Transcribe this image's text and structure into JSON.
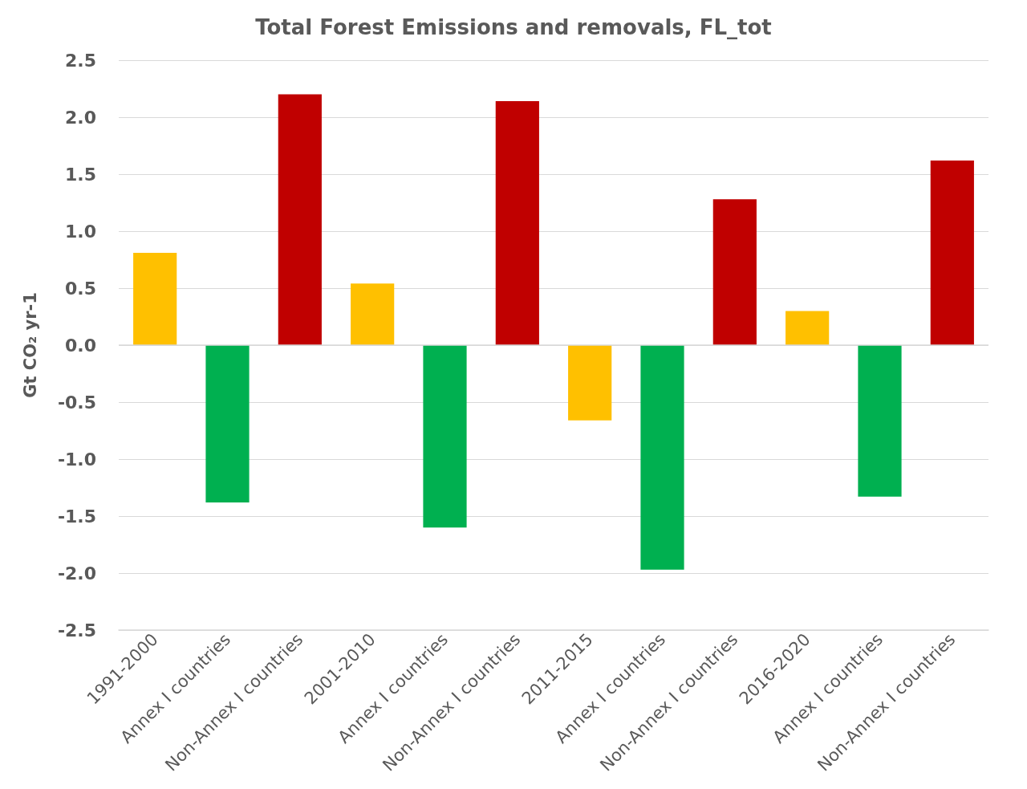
{
  "chart_data": {
    "type": "bar",
    "title": "Total Forest Emissions and removals, FL_tot",
    "ylabel": "Gt CO₂ yr-1",
    "categories": [
      "1991-2000",
      "Annex I countries",
      "Non-Annex I countries",
      "2001-2010",
      "Annex I countries",
      "Non-Annex I countries",
      "2011-2015",
      "Annex I countries",
      "Non-Annex I countries",
      "2016-2020",
      "Annex I countries",
      "Non-Annex I countries"
    ],
    "values": [
      0.81,
      -1.38,
      2.2,
      0.54,
      -1.6,
      2.14,
      -0.66,
      -1.97,
      1.28,
      0.3,
      -1.33,
      1.62
    ],
    "colors": [
      "#ffc000",
      "#00b050",
      "#c00000",
      "#ffc000",
      "#00b050",
      "#c00000",
      "#ffc000",
      "#00b050",
      "#c00000",
      "#ffc000",
      "#00b050",
      "#c00000"
    ],
    "ylim": [
      -2.5,
      2.5
    ],
    "yticks": [
      {
        "value": -2.5,
        "label": "-2.5"
      },
      {
        "value": -2,
        "label": "-2.0"
      },
      {
        "value": -1.5,
        "label": "-1.5"
      },
      {
        "value": -1,
        "label": "-1.0"
      },
      {
        "value": -0.5,
        "label": "-0.5"
      },
      {
        "value": 0,
        "label": "0.0"
      },
      {
        "value": 0.5,
        "label": "0.5"
      },
      {
        "value": 1,
        "label": "1.0"
      },
      {
        "value": 1.5,
        "label": "1.5"
      },
      {
        "value": 2,
        "label": "2.0"
      },
      {
        "value": 2.5,
        "label": "2.5"
      }
    ],
    "grid": "y"
  }
}
